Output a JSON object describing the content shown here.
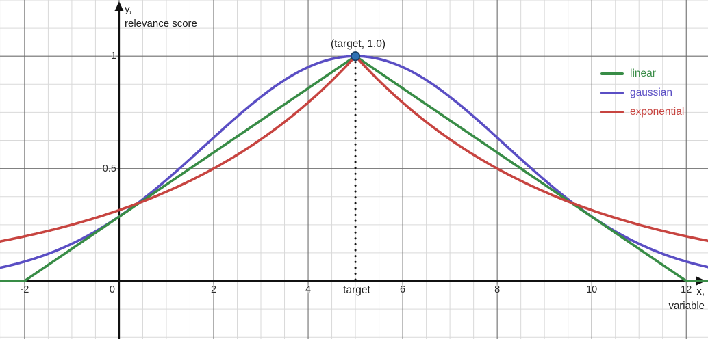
{
  "figure": {
    "background": "#ffffff",
    "axis_color": "#111111",
    "grid_minor_color": "#d9d9d9",
    "grid_major_color": "#6f6f6f",
    "tick_text_color": "#2b2b2b"
  },
  "chart_data": {
    "type": "line",
    "title": "",
    "xlabel": {
      "line1": "x,",
      "line2": "variable"
    },
    "ylabel": {
      "line1": "y,",
      "line2": "relevance score"
    },
    "xlim": [
      -2.52,
      12.46
    ],
    "ylim": [
      -0.2584,
      1.25
    ],
    "x_tick_values": [
      -2,
      0,
      2,
      4,
      6,
      8,
      10,
      12
    ],
    "x_tick_labels": [
      "-2",
      "0",
      "2",
      "4",
      "6",
      "8",
      "10",
      "12"
    ],
    "y_tick_values": [
      0.5,
      1
    ],
    "y_tick_labels": [
      "0.5",
      "1"
    ],
    "grid": {
      "minor_x_step": 0.5,
      "major_x_step": 2,
      "minor_y_step": 0.125,
      "major_y_step": 0.5,
      "grid_on": true
    },
    "target": 5,
    "series": [
      {
        "name": "linear",
        "color": "#388c46",
        "formula": "max(0, 1 - |x - target| / 7)",
        "params": {
          "kind": "linear",
          "half_width": 7
        },
        "peak": [
          5,
          1.0
        ],
        "zeros": [
          -2,
          12
        ]
      },
      {
        "name": "gaussian",
        "color": "#5a4ec4",
        "formula": "exp(-(x - target)^2 / 20)",
        "params": {
          "kind": "gaussian",
          "two_sigma_squared": 20
        },
        "peak": [
          5,
          1.0
        ]
      },
      {
        "name": "exponential",
        "color": "#c74440",
        "formula": "2^(-|x - target| / 3)",
        "params": {
          "kind": "exponential",
          "half_life": 3
        },
        "peak": [
          5,
          1.0
        ]
      }
    ],
    "draw_order": [
      1,
      0,
      2
    ],
    "point": {
      "x": 5,
      "y": 1.0,
      "label": "(target, 1.0)",
      "color": "#2d70b3",
      "border_color": "#173f66"
    },
    "target_marker": {
      "x": 5,
      "label": "target",
      "style": "dotted",
      "color": "#111111"
    },
    "legend": {
      "position": "top-right",
      "entries": [
        "linear",
        "gaussian",
        "exponential"
      ]
    }
  }
}
